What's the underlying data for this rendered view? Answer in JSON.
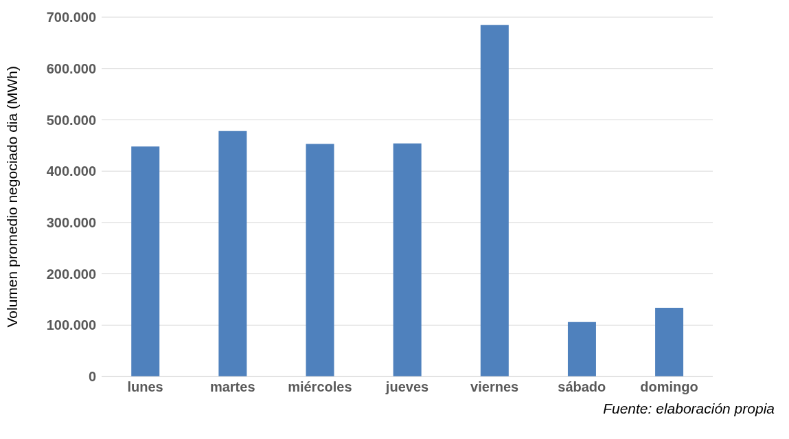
{
  "chart_data": {
    "type": "bar",
    "ylabel": "Volumen promedio negociado dia (MWh)",
    "categories": [
      "lunes",
      "martes",
      "miércoles",
      "jueves",
      "viernes",
      "sábado",
      "domingo"
    ],
    "values": [
      448000,
      478000,
      453000,
      454000,
      685000,
      106000,
      134000
    ],
    "color": "#4f81bd",
    "ylim": [
      0,
      700000
    ],
    "yticks": [
      {
        "value": 0,
        "label": "0"
      },
      {
        "value": 100000,
        "label": "100.000"
      },
      {
        "value": 200000,
        "label": "200.000"
      },
      {
        "value": 300000,
        "label": "300.000"
      },
      {
        "value": 400000,
        "label": "400.000"
      },
      {
        "value": 500000,
        "label": "500.000"
      },
      {
        "value": 600000,
        "label": "600.000"
      },
      {
        "value": 700000,
        "label": "700.000"
      }
    ],
    "grid": "y",
    "annotations": [
      "Fuente: elaboración propia"
    ]
  }
}
